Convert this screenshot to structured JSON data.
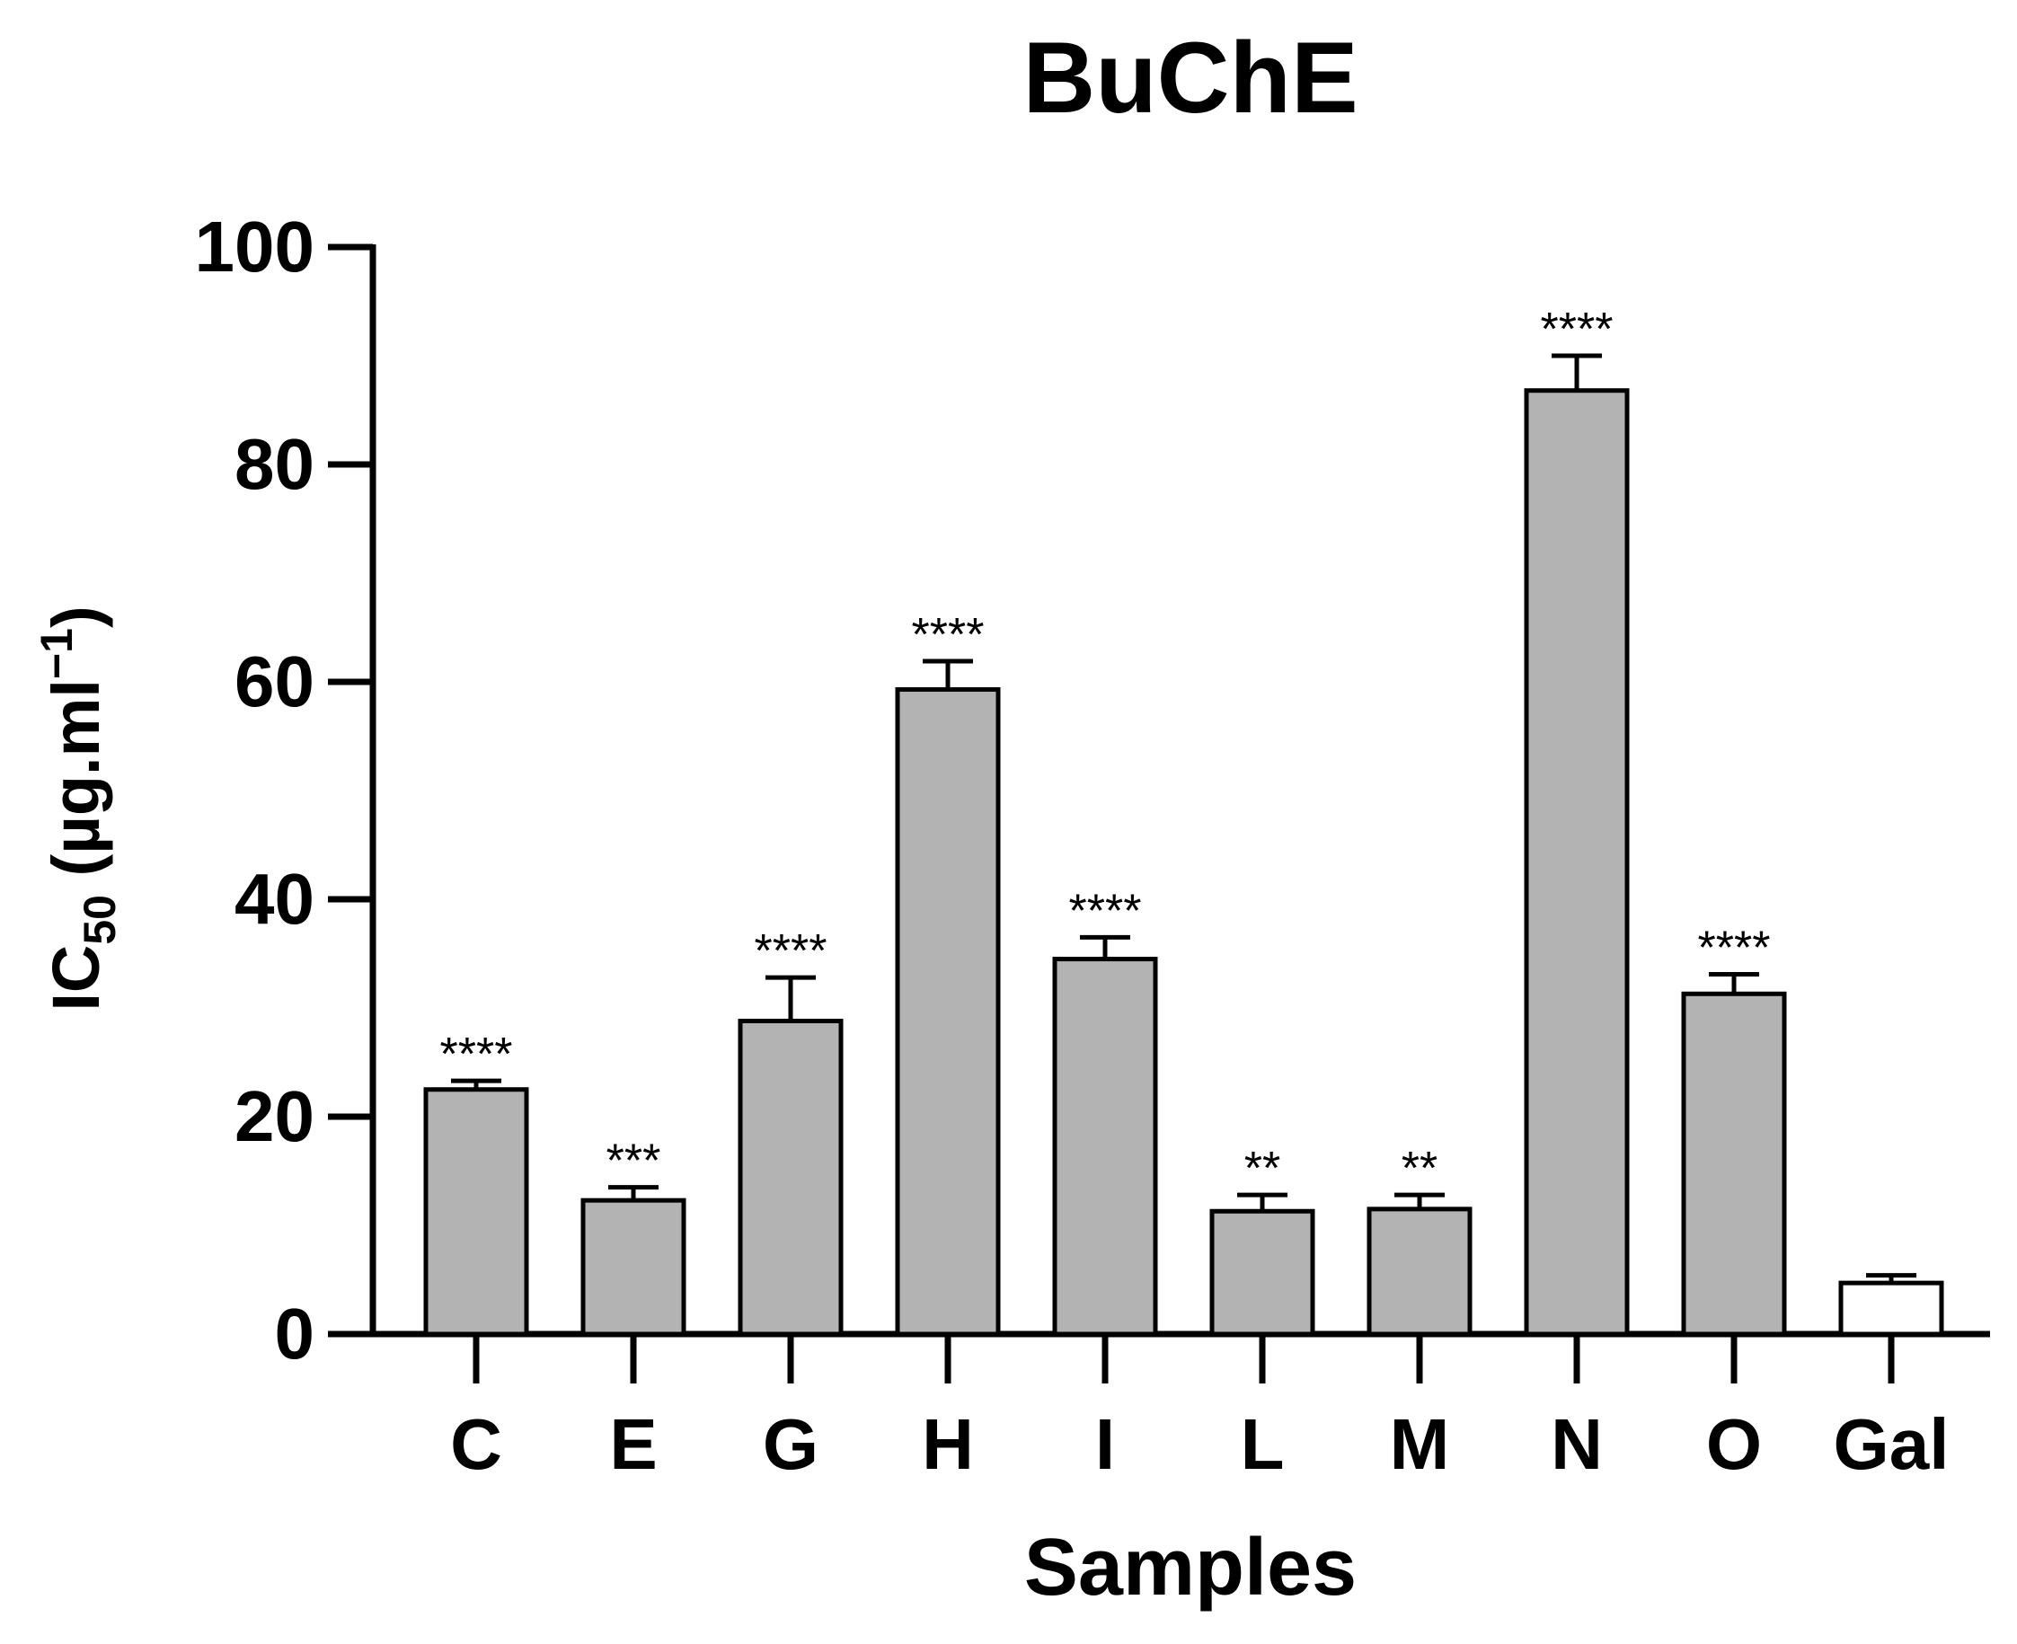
{
  "chart_data": {
    "type": "bar",
    "title": "BuChE",
    "xlabel": "Samples",
    "ylabel": {
      "prefix": "IC",
      "subscript": "50",
      "middle": " (µg.ml",
      "superscript": "−1",
      "suffix": ")"
    },
    "ylim": [
      0,
      100
    ],
    "yticks": [
      "0",
      "20",
      "40",
      "60",
      "80",
      "100"
    ],
    "categories": [
      "C",
      "E",
      "G",
      "H",
      "I",
      "L",
      "M",
      "N",
      "O",
      "Gal"
    ],
    "values": [
      22.5,
      12.3,
      28.8,
      59.3,
      34.5,
      11.3,
      11.5,
      86.8,
      31.3,
      4.7
    ],
    "errors": [
      0.8,
      1.2,
      4.0,
      2.6,
      2.0,
      1.5,
      1.3,
      3.2,
      1.8,
      0.7
    ],
    "significance": [
      "****",
      "***",
      "****",
      "****",
      "****",
      "**",
      "**",
      "****",
      "****",
      ""
    ],
    "colors": {
      "bar_fill": [
        "#b3b3b3",
        "#b3b3b3",
        "#b3b3b3",
        "#b3b3b3",
        "#b3b3b3",
        "#b3b3b3",
        "#b3b3b3",
        "#b3b3b3",
        "#b3b3b3",
        "#ffffff"
      ],
      "stroke": "#000000"
    },
    "grid": false
  }
}
